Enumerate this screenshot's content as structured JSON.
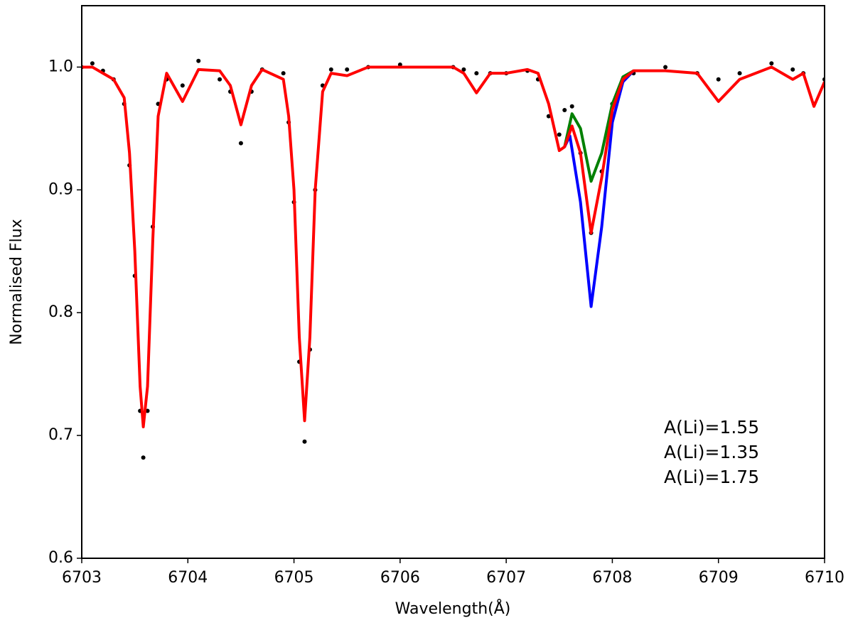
{
  "chart_data": {
    "type": "line",
    "xlabel": "Wavelength(Å)",
    "ylabel": "Normalised Flux",
    "xlim": [
      6703,
      6710
    ],
    "ylim": [
      0.6,
      1.05
    ],
    "xticks": [
      6703,
      6704,
      6705,
      6706,
      6707,
      6708,
      6709,
      6710
    ],
    "yticks": [
      0.6,
      0.7,
      0.8,
      0.9,
      {
        "value": 1,
        "label": "1.0"
      }
    ],
    "legend": "lower right",
    "x": [
      6703.0,
      6703.1,
      6703.2,
      6703.3,
      6703.4,
      6703.45,
      6703.5,
      6703.55,
      6703.58,
      6703.62,
      6703.67,
      6703.72,
      6703.8,
      6703.95,
      6704.1,
      6704.3,
      6704.4,
      6704.5,
      6704.6,
      6704.7,
      6704.9,
      6704.95,
      6705.0,
      6705.05,
      6705.1,
      6705.15,
      6705.2,
      6705.27,
      6705.35,
      6705.5,
      6705.7,
      6706.0,
      6706.5,
      6706.6,
      6706.72,
      6706.85,
      6707.0,
      6707.2,
      6707.3,
      6707.4,
      6707.5,
      6707.55,
      6707.62,
      6707.7,
      6707.8,
      6707.9,
      6708.0,
      6708.1,
      6708.2,
      6708.5,
      6708.8,
      6709.0,
      6709.2,
      6709.5,
      6709.7,
      6709.8,
      6709.9,
      6710.0
    ],
    "observed": {
      "color": "#000000",
      "values": [
        1.0,
        1.003,
        0.997,
        0.99,
        0.97,
        0.92,
        0.83,
        0.72,
        0.682,
        0.72,
        0.87,
        0.97,
        0.99,
        0.985,
        1.005,
        0.99,
        0.98,
        0.938,
        0.98,
        0.998,
        0.995,
        0.955,
        0.89,
        0.76,
        0.695,
        0.77,
        0.9,
        0.985,
        0.998,
        0.998,
        1.0,
        1.002,
        1.0,
        0.998,
        0.995,
        0.995,
        0.995,
        0.997,
        0.99,
        0.96,
        0.945,
        0.965,
        0.968,
        0.93,
        0.865,
        0.915,
        0.97,
        0.99,
        0.995,
        1.0,
        0.995,
        0.99,
        0.995,
        1.003,
        0.998,
        0.995,
        0.97,
        0.99
      ]
    },
    "series": [
      {
        "name": "A(Li)=1.55",
        "color": "#ff0000",
        "values": [
          1.0,
          1.0,
          0.995,
          0.99,
          0.975,
          0.93,
          0.85,
          0.74,
          0.707,
          0.74,
          0.86,
          0.96,
          0.995,
          0.972,
          0.998,
          0.997,
          0.985,
          0.953,
          0.985,
          0.998,
          0.99,
          0.96,
          0.9,
          0.78,
          0.712,
          0.78,
          0.9,
          0.98,
          0.995,
          0.993,
          1.0,
          1.0,
          1.0,
          0.995,
          0.979,
          0.995,
          0.995,
          0.998,
          0.995,
          0.97,
          0.932,
          0.935,
          0.952,
          0.93,
          0.865,
          0.91,
          0.965,
          0.99,
          0.997,
          0.997,
          0.995,
          0.972,
          0.99,
          1.0,
          0.99,
          0.995,
          0.968,
          0.988
        ]
      },
      {
        "name": "A(Li)=1.35",
        "color": "#008000",
        "x": [
          6707.55,
          6707.62,
          6707.7,
          6707.8,
          6707.9,
          6708.0,
          6708.1,
          6708.2
        ],
        "values": [
          0.935,
          0.962,
          0.95,
          0.907,
          0.93,
          0.97,
          0.992,
          0.997
        ]
      },
      {
        "name": "A(Li)=1.75",
        "color": "#0000ff",
        "x": [
          6707.55,
          6707.6,
          6707.7,
          6707.8,
          6707.9,
          6708.0,
          6708.1,
          6708.2
        ],
        "values": [
          0.935,
          0.944,
          0.89,
          0.805,
          0.87,
          0.955,
          0.988,
          0.997
        ]
      }
    ]
  }
}
